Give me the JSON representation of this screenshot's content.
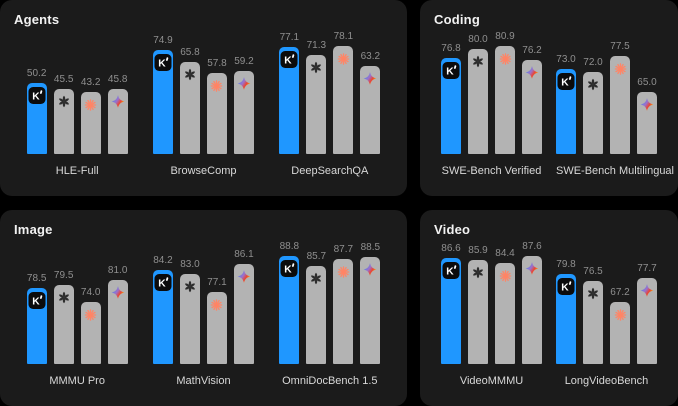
{
  "page": {
    "background_color": "#000000",
    "panel_background_color": "#1b1b1b",
    "value_label_color": "#8f8f8f",
    "category_label_color": "#d8d8d8"
  },
  "series_legend": [
    {
      "icon": "kimi-k-logo",
      "bar_color": "#1f97ff"
    },
    {
      "icon": "openai-logo",
      "bar_color": "#b3b3b3"
    },
    {
      "icon": "claude-starburst-logo",
      "bar_color": "#b3b3b3"
    },
    {
      "icon": "gemini-sparkle-logo",
      "bar_color": "#b3b3b3"
    }
  ],
  "chart_data": [
    {
      "type": "bar",
      "title": "Agents",
      "categories": [
        "HLE-Full",
        "BrowseComp",
        "DeepSearchQA"
      ],
      "series": [
        {
          "name": "kimi-k-logo",
          "values": [
            50.2,
            74.9,
            77.1
          ]
        },
        {
          "name": "openai-logo",
          "values": [
            45.5,
            65.8,
            71.3
          ]
        },
        {
          "name": "claude-starburst-logo",
          "values": [
            43.2,
            57.8,
            78.1
          ]
        },
        {
          "name": "gemini-sparkle-logo",
          "values": [
            45.8,
            59.2,
            63.2
          ]
        }
      ],
      "ylim": [
        0,
        100
      ],
      "grid": false,
      "value_labels": true,
      "legend_position": "icons-on-bars"
    },
    {
      "type": "bar",
      "title": "Coding",
      "categories": [
        "SWE-Bench Verified",
        "SWE-Bench Multilingual"
      ],
      "series": [
        {
          "name": "kimi-k-logo",
          "values": [
            76.8,
            73.0
          ]
        },
        {
          "name": "openai-logo",
          "values": [
            80.0,
            72.0
          ]
        },
        {
          "name": "claude-starburst-logo",
          "values": [
            80.9,
            77.5
          ]
        },
        {
          "name": "gemini-sparkle-logo",
          "values": [
            76.2,
            65.0
          ]
        }
      ],
      "ylim": [
        0,
        100
      ],
      "grid": false,
      "value_labels": true,
      "legend_position": "icons-on-bars"
    },
    {
      "type": "bar",
      "title": "Image",
      "categories": [
        "MMMU Pro",
        "MathVision",
        "OmniDocBench 1.5"
      ],
      "series": [
        {
          "name": "kimi-k-logo",
          "values": [
            78.5,
            84.2,
            88.8
          ]
        },
        {
          "name": "openai-logo",
          "values": [
            79.5,
            83.0,
            85.7
          ]
        },
        {
          "name": "claude-starburst-logo",
          "values": [
            74.0,
            77.1,
            87.7
          ]
        },
        {
          "name": "gemini-sparkle-logo",
          "values": [
            81.0,
            86.1,
            88.5
          ]
        }
      ],
      "ylim": [
        0,
        100
      ],
      "grid": false,
      "value_labels": true,
      "legend_position": "icons-on-bars"
    },
    {
      "type": "bar",
      "title": "Video",
      "categories": [
        "VideoMMMU",
        "LongVideoBench"
      ],
      "series": [
        {
          "name": "kimi-k-logo",
          "values": [
            86.6,
            79.8
          ]
        },
        {
          "name": "openai-logo",
          "values": [
            85.9,
            76.5
          ]
        },
        {
          "name": "claude-starburst-logo",
          "values": [
            84.4,
            67.2
          ]
        },
        {
          "name": "gemini-sparkle-logo",
          "values": [
            87.6,
            77.7
          ]
        }
      ],
      "ylim": [
        0,
        100
      ],
      "grid": false,
      "value_labels": true,
      "legend_position": "icons-on-bars"
    }
  ]
}
